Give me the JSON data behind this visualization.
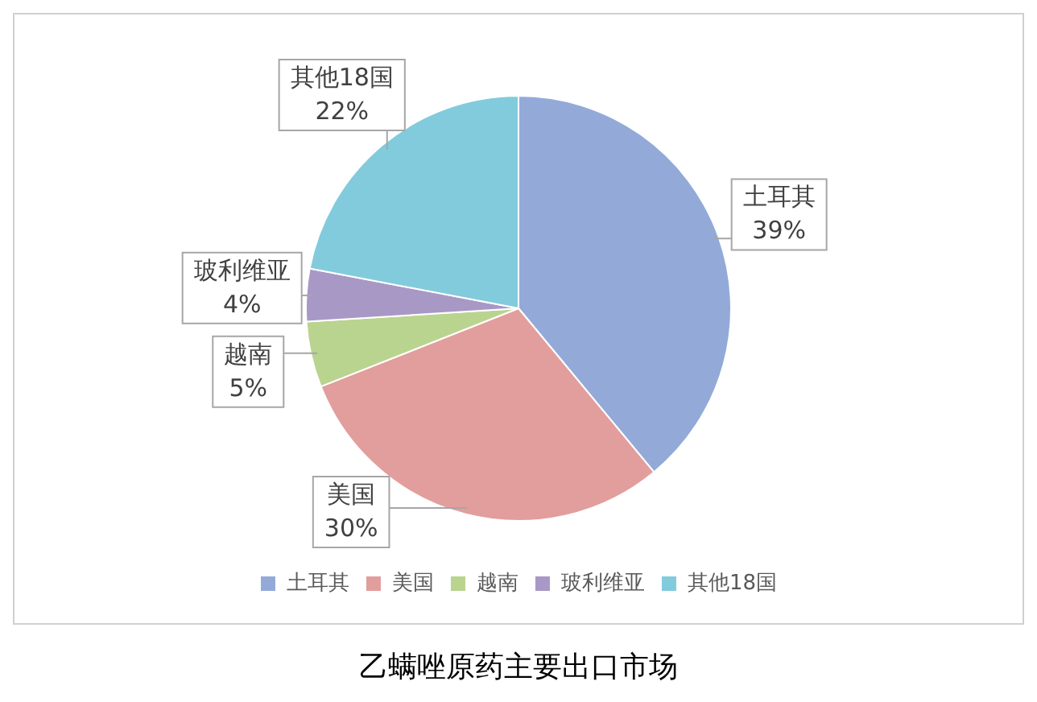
{
  "chart_data": {
    "type": "pie",
    "title": "乙螨唑原药主要出口市场",
    "categories": [
      "土耳其",
      "美国",
      "越南",
      "玻利维亚",
      "其他18国"
    ],
    "values": [
      39,
      30,
      5,
      4,
      22
    ],
    "colors": [
      "#93aad9",
      "#e29e9c",
      "#b9d48e",
      "#a898c6",
      "#82cbdc"
    ],
    "value_labels": [
      "39%",
      "30%",
      "5%",
      "4%",
      "22%"
    ],
    "legend": "bottom"
  }
}
